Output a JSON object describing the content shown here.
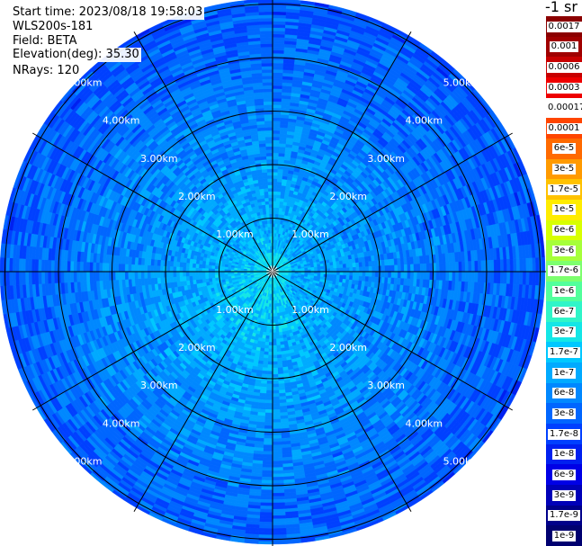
{
  "header": {
    "start_time": "Start time: 2023/08/18 19:58:03",
    "instrument": "WLS200s-181",
    "field": "Field: BETA",
    "elevation": "Elevation(deg): 35.30",
    "nrays": "NRays: 120"
  },
  "plot": {
    "units_label": "-1 sr",
    "range_ring_labels": [
      "1.00km",
      "2.00km",
      "3.00km",
      "4.00km",
      "5.00km"
    ],
    "range_rings_km": [
      1,
      2,
      3,
      4,
      5
    ],
    "max_range_km": 5,
    "spoke_angles_deg": [
      0,
      30,
      60,
      90,
      120,
      150,
      180,
      210,
      240,
      270,
      300,
      330
    ],
    "nrays": 120
  },
  "colorbar": {
    "entries": [
      {
        "label": "0.0017",
        "color": "#8b0000"
      },
      {
        "label": "0.001",
        "color": "#a00000"
      },
      {
        "label": "0.0006",
        "color": "#c80000"
      },
      {
        "label": "0.0003",
        "color": "#ee0000"
      },
      {
        "label": "0.00017",
        "color": "#ffffff"
      },
      {
        "label": "0.0001",
        "color": "#ff4500"
      },
      {
        "label": "6e-5",
        "color": "#ff6a00"
      },
      {
        "label": "3e-5",
        "color": "#ff9a00"
      },
      {
        "label": "1.7e-5",
        "color": "#ffc200"
      },
      {
        "label": "1e-5",
        "color": "#ffec00"
      },
      {
        "label": "6e-6",
        "color": "#d8ff00"
      },
      {
        "label": "3e-6",
        "color": "#a6ff3a"
      },
      {
        "label": "1.7e-6",
        "color": "#7dff6e"
      },
      {
        "label": "1e-6",
        "color": "#52ff9b"
      },
      {
        "label": "6e-7",
        "color": "#30f5c8"
      },
      {
        "label": "3e-7",
        "color": "#14e6e6"
      },
      {
        "label": "1.7e-7",
        "color": "#00c8ff"
      },
      {
        "label": "1e-7",
        "color": "#00aaff"
      },
      {
        "label": "6e-8",
        "color": "#0088ff"
      },
      {
        "label": "3e-8",
        "color": "#0066ff"
      },
      {
        "label": "1.7e-8",
        "color": "#0040ff"
      },
      {
        "label": "1e-8",
        "color": "#0020f0"
      },
      {
        "label": "6e-9",
        "color": "#0000e6"
      },
      {
        "label": "3e-9",
        "color": "#0000b8"
      },
      {
        "label": "1.7e-9",
        "color": "#00008a"
      },
      {
        "label": "1e-9",
        "color": "#000070"
      }
    ]
  }
}
